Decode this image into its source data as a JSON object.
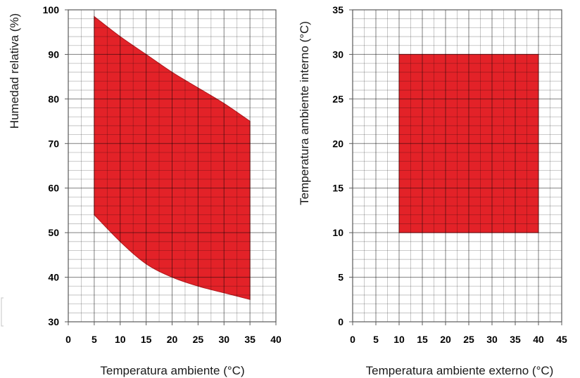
{
  "colors": {
    "region_fill": "#e32228",
    "region_edge": "#b2191d"
  },
  "chart_data": [
    {
      "type": "area",
      "xlabel": "Temperatura ambiente (°C)",
      "ylabel": "Humedad relativa (%)",
      "xlim": [
        0,
        40
      ],
      "ylim": [
        30,
        100
      ],
      "xticks": [
        0,
        5,
        10,
        15,
        20,
        25,
        30,
        35,
        40
      ],
      "yticks": [
        30,
        40,
        50,
        60,
        70,
        80,
        90,
        100
      ],
      "grid": true,
      "grid_step": {
        "x_major": 5,
        "x_minor": 2.5,
        "y_major": 10,
        "y_minor": 2
      },
      "series": [
        {
          "x": [
            5,
            10,
            15,
            20,
            25,
            30,
            35
          ],
          "upper": [
            98.5,
            94,
            90,
            86,
            82.5,
            79,
            75
          ],
          "lower": [
            54,
            48,
            43,
            40,
            38,
            36.5,
            35
          ]
        }
      ]
    },
    {
      "type": "area",
      "xlabel": "Temperatura ambiente externo (°C)",
      "ylabel": "Temperatura ambiente interno (°C)",
      "xlim": [
        0,
        45
      ],
      "ylim": [
        0,
        35
      ],
      "xticks": [
        0,
        5,
        10,
        15,
        20,
        25,
        30,
        35,
        40,
        45
      ],
      "yticks": [
        0,
        5,
        10,
        15,
        20,
        25,
        30,
        35
      ],
      "grid": true,
      "grid_step": {
        "x_major": 5,
        "x_minor": 2.5,
        "y_major": 5,
        "y_minor": 1
      },
      "series": [
        {
          "x": [
            10,
            40
          ],
          "upper": [
            30,
            30
          ],
          "lower": [
            10,
            10
          ]
        }
      ]
    }
  ]
}
